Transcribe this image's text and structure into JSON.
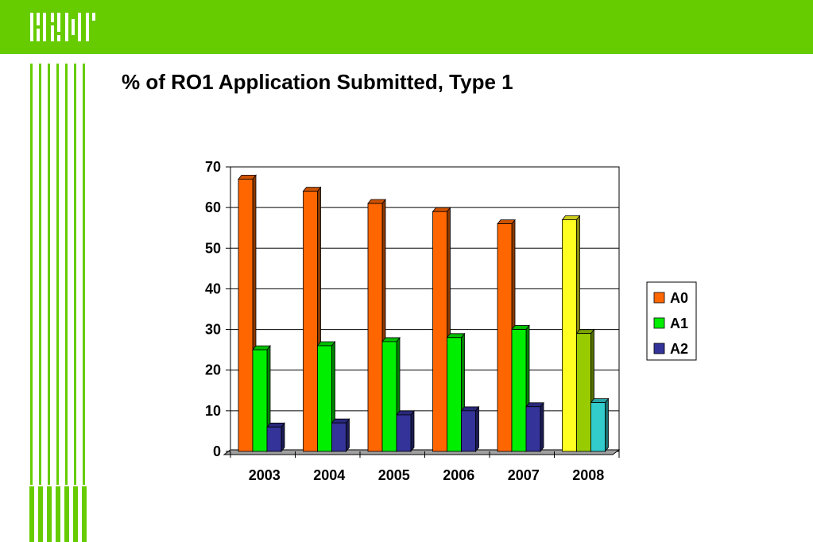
{
  "slide": {
    "title": "% of RO1 Application Submitted, Type 1"
  },
  "header": {
    "brand_color": "#66cc00",
    "logo_icon": "nih-logo-icon"
  },
  "chart_data": {
    "type": "bar",
    "style": "3d-clustered-column",
    "title": "",
    "xlabel": "",
    "ylabel": "",
    "categories": [
      "2003",
      "2004",
      "2005",
      "2006",
      "2007",
      "2008"
    ],
    "ylim": [
      0,
      70
    ],
    "yticks": [
      0,
      10,
      20,
      30,
      40,
      50,
      60,
      70
    ],
    "grid": true,
    "legend_position": "right",
    "series": [
      {
        "name": "A0",
        "values": [
          67,
          64,
          61,
          59,
          56,
          57
        ],
        "color": "#ff6600"
      },
      {
        "name": "A1",
        "values": [
          25,
          26,
          27,
          28,
          30,
          29
        ],
        "color": "#00ee00"
      },
      {
        "name": "A2",
        "values": [
          6,
          7,
          9,
          10,
          11,
          12
        ],
        "color": "#333399"
      }
    ],
    "highlight_category": "2008",
    "highlight_colors": [
      "#ffff22",
      "#99cc00",
      "#33cccc"
    ]
  }
}
